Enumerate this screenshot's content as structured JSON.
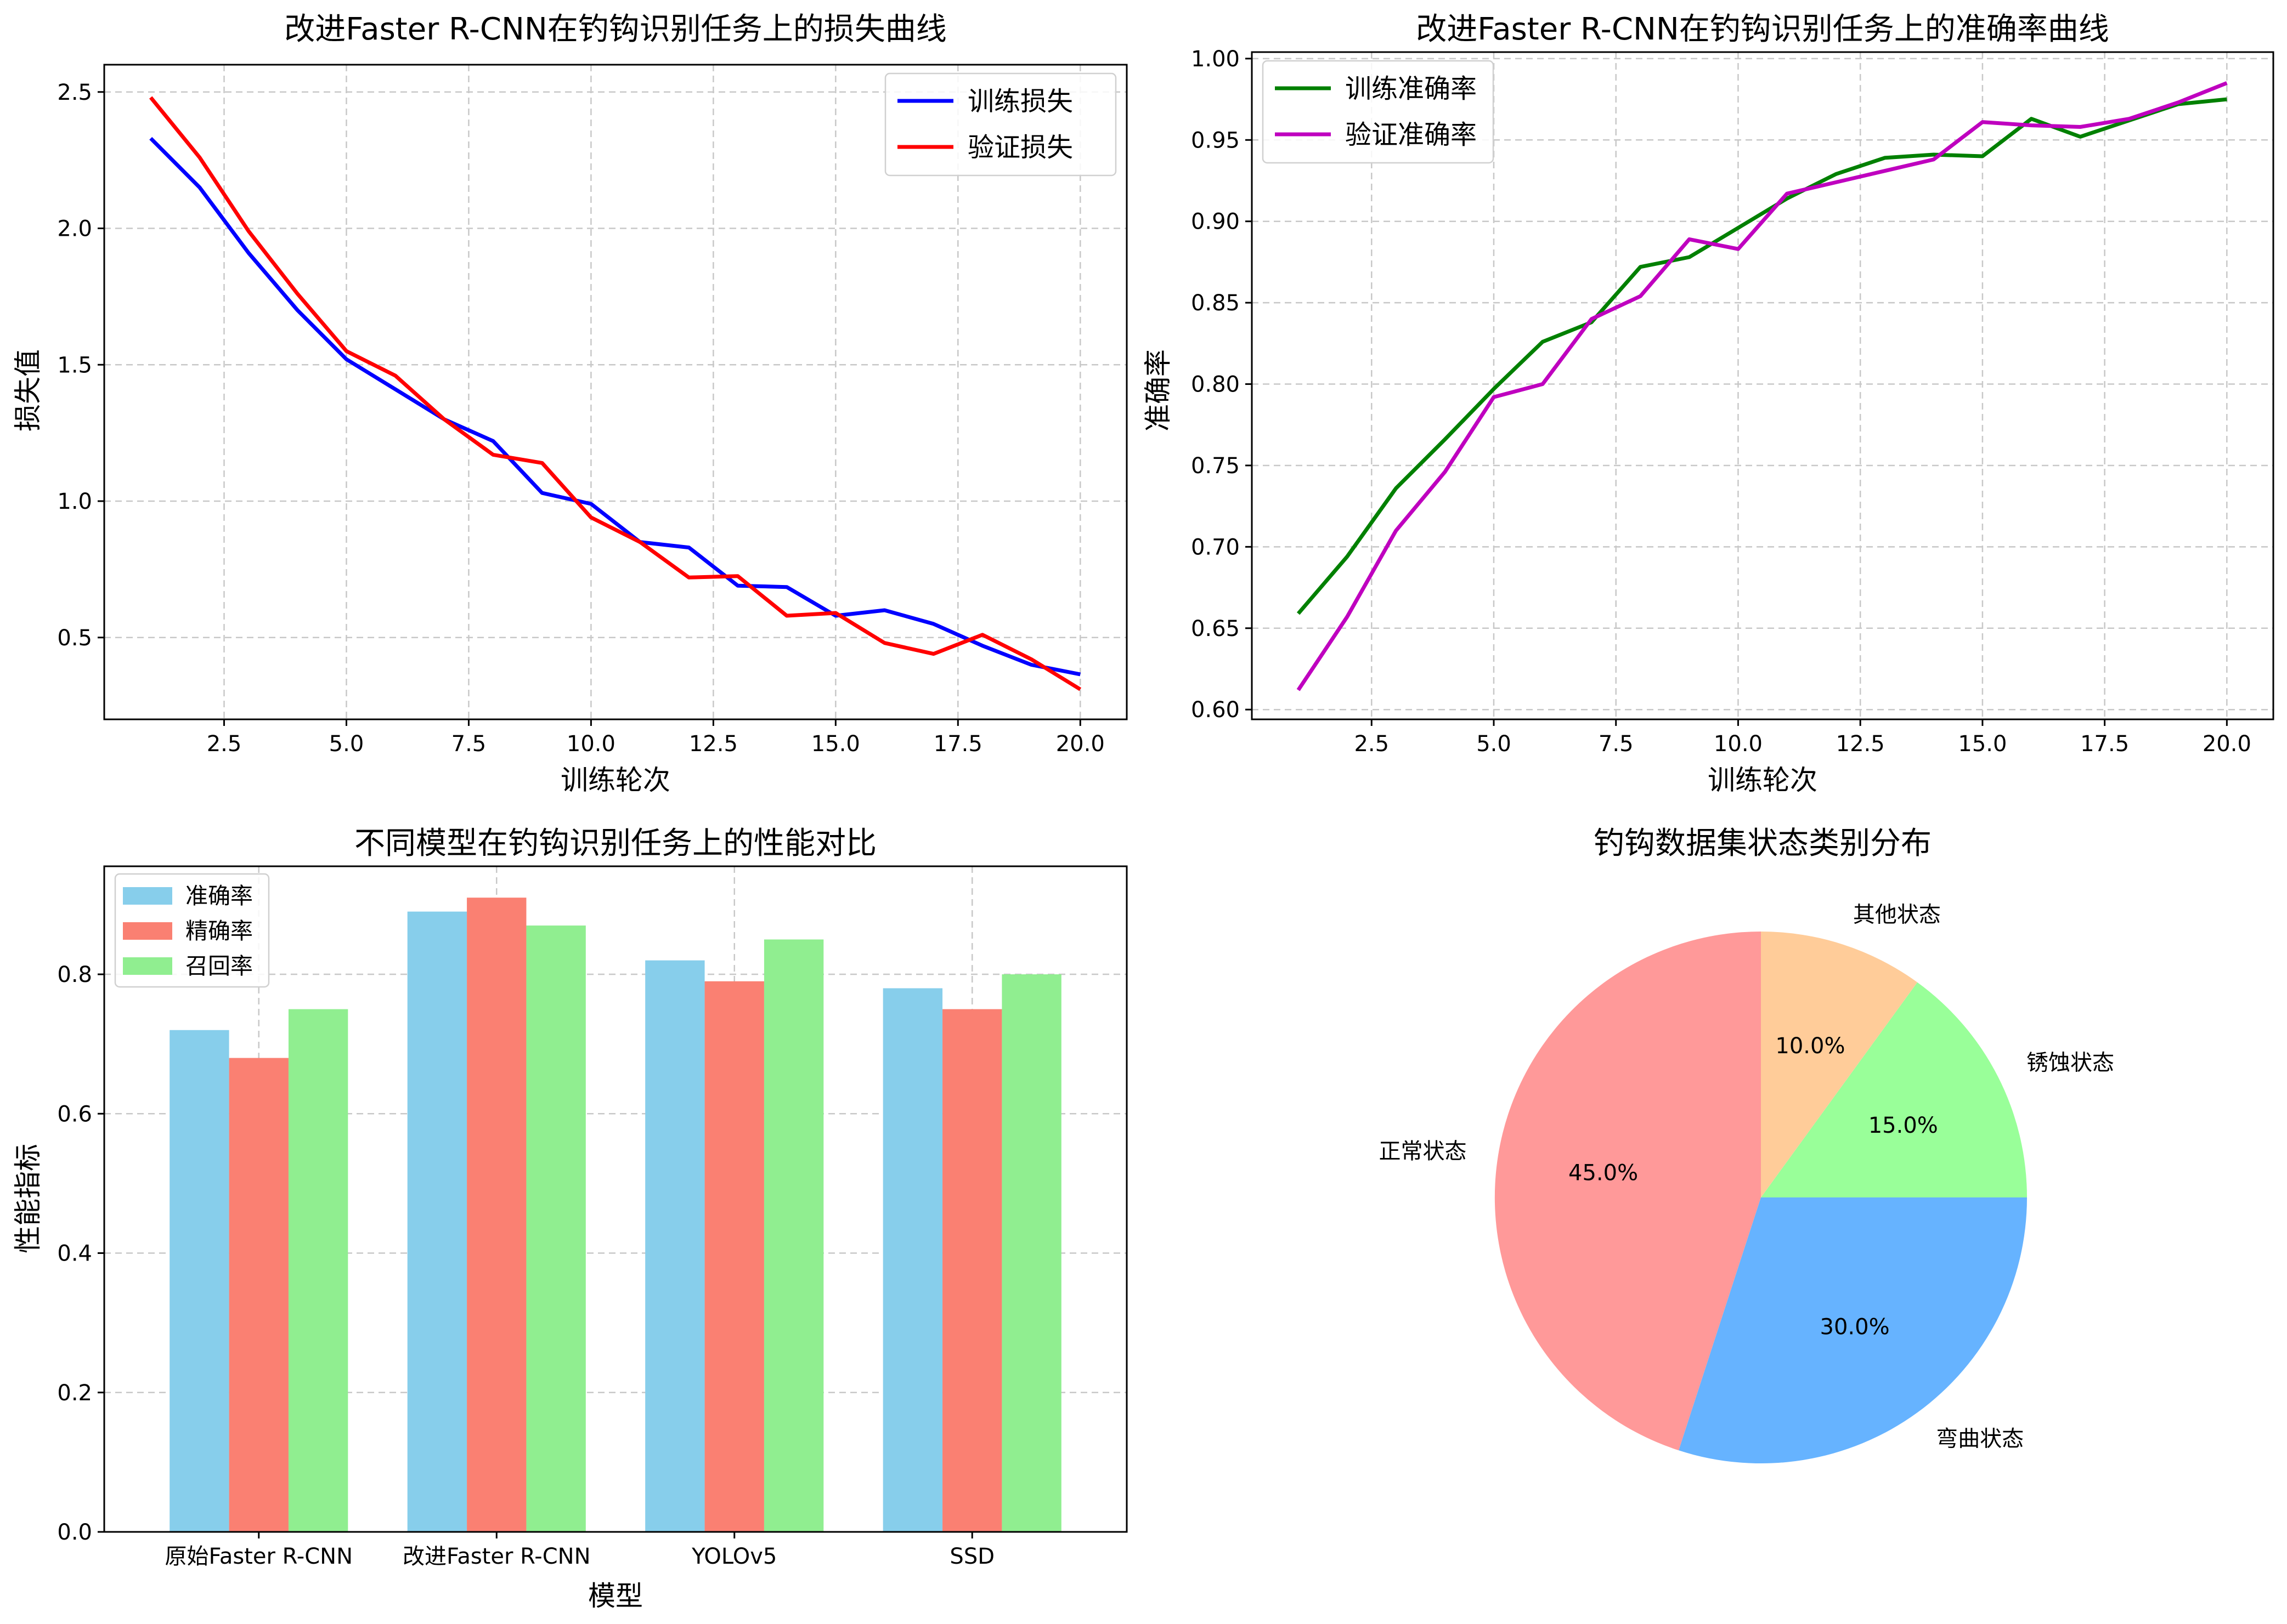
{
  "chart_data": [
    {
      "id": "loss",
      "type": "line",
      "title": "改进Faster R-CNN在钓钩识别任务上的损失曲线",
      "xlabel": "训练轮次",
      "ylabel": "损失值",
      "xlim": [
        0.05,
        20.95
      ],
      "ylim": [
        0.2,
        2.6
      ],
      "xticks": [
        2.5,
        5.0,
        7.5,
        10.0,
        12.5,
        15.0,
        17.5,
        20.0
      ],
      "xtick_labels": [
        "2.5",
        "5.0",
        "7.5",
        "10.0",
        "12.5",
        "15.0",
        "17.5",
        "20.0"
      ],
      "yticks": [
        0.5,
        1.0,
        1.5,
        2.0,
        2.5
      ],
      "ytick_labels": [
        "0.5",
        "1.0",
        "1.5",
        "2.0",
        "2.5"
      ],
      "grid": true,
      "legend_position": "top-right",
      "x": [
        1,
        2,
        3,
        4,
        5,
        6,
        7,
        8,
        9,
        10,
        11,
        12,
        13,
        14,
        15,
        16,
        17,
        18,
        19,
        20
      ],
      "series": [
        {
          "name": "训练损失",
          "color": "#0000ff",
          "values": [
            2.33,
            2.15,
            1.91,
            1.7,
            1.52,
            1.41,
            1.3,
            1.22,
            1.03,
            0.99,
            0.85,
            0.83,
            0.69,
            0.685,
            0.58,
            0.6,
            0.55,
            0.47,
            0.4,
            0.365
          ]
        },
        {
          "name": "验证损失",
          "color": "#ff0000",
          "values": [
            2.48,
            2.26,
            1.99,
            1.76,
            1.55,
            1.46,
            1.3,
            1.17,
            1.14,
            0.94,
            0.85,
            0.72,
            0.725,
            0.58,
            0.59,
            0.48,
            0.44,
            0.51,
            0.42,
            0.31
          ]
        }
      ]
    },
    {
      "id": "accuracy",
      "type": "line",
      "title": "改进Faster R-CNN在钓钩识别任务上的准确率曲线",
      "xlabel": "训练轮次",
      "ylabel": "准确率",
      "xlim": [
        0.05,
        20.95
      ],
      "ylim": [
        0.594,
        1.004
      ],
      "xticks": [
        2.5,
        5.0,
        7.5,
        10.0,
        12.5,
        15.0,
        17.5,
        20.0
      ],
      "xtick_labels": [
        "2.5",
        "5.0",
        "7.5",
        "10.0",
        "12.5",
        "15.0",
        "17.5",
        "20.0"
      ],
      "yticks": [
        0.6,
        0.65,
        0.7,
        0.75,
        0.8,
        0.85,
        0.9,
        0.95,
        1.0
      ],
      "ytick_labels": [
        "0.60",
        "0.65",
        "0.70",
        "0.75",
        "0.80",
        "0.85",
        "0.90",
        "0.95",
        "1.00"
      ],
      "grid": true,
      "legend_position": "top-left",
      "x": [
        1,
        2,
        3,
        4,
        5,
        6,
        7,
        8,
        9,
        10,
        11,
        12,
        13,
        14,
        15,
        16,
        17,
        18,
        19,
        20
      ],
      "series": [
        {
          "name": "训练准确率",
          "color": "#008000",
          "values": [
            0.659,
            0.694,
            0.736,
            0.766,
            0.797,
            0.826,
            0.838,
            0.872,
            0.878,
            0.896,
            0.914,
            0.929,
            0.939,
            0.941,
            0.94,
            0.963,
            0.952,
            0.962,
            0.972,
            0.975
          ]
        },
        {
          "name": "验证准确率",
          "color": "#bf00bf",
          "values": [
            0.612,
            0.657,
            0.71,
            0.746,
            0.792,
            0.8,
            0.84,
            0.854,
            0.889,
            0.883,
            0.917,
            0.924,
            0.931,
            0.938,
            0.961,
            0.959,
            0.958,
            0.963,
            0.973,
            0.985
          ]
        }
      ]
    },
    {
      "id": "bars",
      "type": "bar",
      "title": "不同模型在钓钩识别任务上的性能对比",
      "xlabel": "模型",
      "ylabel": "性能指标",
      "ylim": [
        0,
        0.955
      ],
      "yticks": [
        0.0,
        0.2,
        0.4,
        0.6,
        0.8
      ],
      "ytick_labels": [
        "0.0",
        "0.2",
        "0.4",
        "0.6",
        "0.8"
      ],
      "grid": true,
      "legend_position": "top-left",
      "categories": [
        "原始Faster R-CNN",
        "改进Faster R-CNN",
        "YOLOv5",
        "SSD"
      ],
      "series": [
        {
          "name": "准确率",
          "color": "#87ceeb",
          "values": [
            0.72,
            0.89,
            0.82,
            0.78
          ]
        },
        {
          "name": "精确率",
          "color": "#fa8072",
          "values": [
            0.68,
            0.91,
            0.79,
            0.75
          ]
        },
        {
          "name": "召回率",
          "color": "#90ee90",
          "values": [
            0.75,
            0.87,
            0.85,
            0.8
          ]
        }
      ]
    },
    {
      "id": "pie",
      "type": "pie",
      "title": "钓钩数据集状态类别分布",
      "start_angle_deg": 90,
      "direction": "counterclockwise",
      "slices": [
        {
          "label": "正常状态",
          "value": 45,
          "pct_label": "45.0%",
          "color": "#ff9999"
        },
        {
          "label": "弯曲状态",
          "value": 30,
          "pct_label": "30.0%",
          "color": "#66b3ff"
        },
        {
          "label": "锈蚀状态",
          "value": 15,
          "pct_label": "15.0%",
          "color": "#99ff99"
        },
        {
          "label": "其他状态",
          "value": 10,
          "pct_label": "10.0%",
          "color": "#ffcc99"
        }
      ]
    }
  ]
}
